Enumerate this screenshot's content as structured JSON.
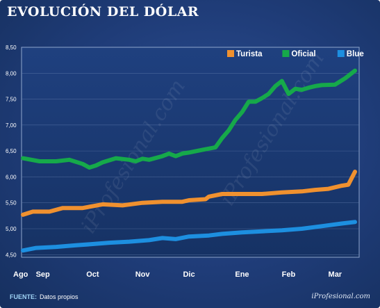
{
  "title": "EVOLUCIÓN DEL DÓLAR",
  "footer": {
    "source_label": "FUENTE:",
    "source_text": "Datos propios",
    "brand": "iProfesional.com"
  },
  "watermark": "iProfesional.com",
  "colors": {
    "turista": "#f0912f",
    "oficial": "#16a94a",
    "blue": "#1d8fe0"
  },
  "chart_data": {
    "type": "line",
    "title": "EVOLUCIÓN DEL DÓLAR",
    "xlabel": "",
    "ylabel": "",
    "ylim": [
      4.45,
      8.5
    ],
    "yticks": [
      4.5,
      5.0,
      5.5,
      6.0,
      6.5,
      7.0,
      7.5,
      8.0,
      8.5
    ],
    "ytick_labels": [
      "4,50",
      "5,00",
      "5,50",
      "6,00",
      "6,50",
      "7,00",
      "7,50",
      "8,00",
      "8,50"
    ],
    "xlim": [
      0,
      100
    ],
    "x_tick_labels": [
      {
        "label": "Ago",
        "x": 0
      },
      {
        "label": "Sep",
        "x": 6
      },
      {
        "label": "Oct",
        "x": 21
      },
      {
        "label": "Nov",
        "x": 36
      },
      {
        "label": "Dic",
        "x": 50
      },
      {
        "label": "Ene",
        "x": 66
      },
      {
        "label": "Feb",
        "x": 80
      },
      {
        "label": "Mar",
        "x": 94
      }
    ],
    "grid": true,
    "legend_position": "top-right",
    "series": [
      {
        "name": "Turista",
        "color": "#f0912f",
        "x": [
          0,
          3,
          8,
          12,
          18,
          24,
          30,
          36,
          42,
          48,
          50,
          55,
          56,
          60,
          66,
          72,
          78,
          84,
          88,
          92,
          96,
          98,
          100
        ],
        "y": [
          5.27,
          5.33,
          5.33,
          5.4,
          5.4,
          5.47,
          5.45,
          5.5,
          5.52,
          5.52,
          5.55,
          5.57,
          5.62,
          5.67,
          5.67,
          5.67,
          5.7,
          5.72,
          5.75,
          5.77,
          5.83,
          5.85,
          6.1
        ]
      },
      {
        "name": "Oficial",
        "color": "#16a94a",
        "x": [
          0,
          5,
          10,
          14,
          18,
          20,
          22,
          24,
          28,
          32,
          34,
          36,
          38,
          42,
          44,
          46,
          48,
          50,
          54,
          58,
          60,
          62,
          64,
          66,
          68,
          70,
          72,
          74,
          76,
          78,
          80,
          82,
          84,
          86,
          88,
          90,
          94,
          97,
          100
        ],
        "y": [
          6.36,
          6.3,
          6.3,
          6.33,
          6.25,
          6.18,
          6.22,
          6.28,
          6.36,
          6.33,
          6.3,
          6.35,
          6.33,
          6.4,
          6.45,
          6.4,
          6.45,
          6.47,
          6.52,
          6.57,
          6.75,
          6.9,
          7.1,
          7.25,
          7.45,
          7.45,
          7.52,
          7.6,
          7.75,
          7.85,
          7.6,
          7.7,
          7.68,
          7.72,
          7.75,
          7.77,
          7.78,
          7.9,
          8.05
        ]
      },
      {
        "name": "Blue",
        "color": "#1d8fe0",
        "x": [
          0,
          4,
          10,
          16,
          20,
          26,
          32,
          38,
          42,
          46,
          50,
          56,
          60,
          66,
          72,
          78,
          84,
          90,
          96,
          100
        ],
        "y": [
          4.58,
          4.63,
          4.65,
          4.68,
          4.7,
          4.73,
          4.75,
          4.78,
          4.82,
          4.8,
          4.85,
          4.87,
          4.9,
          4.93,
          4.95,
          4.97,
          5.0,
          5.05,
          5.1,
          5.13
        ]
      }
    ]
  }
}
